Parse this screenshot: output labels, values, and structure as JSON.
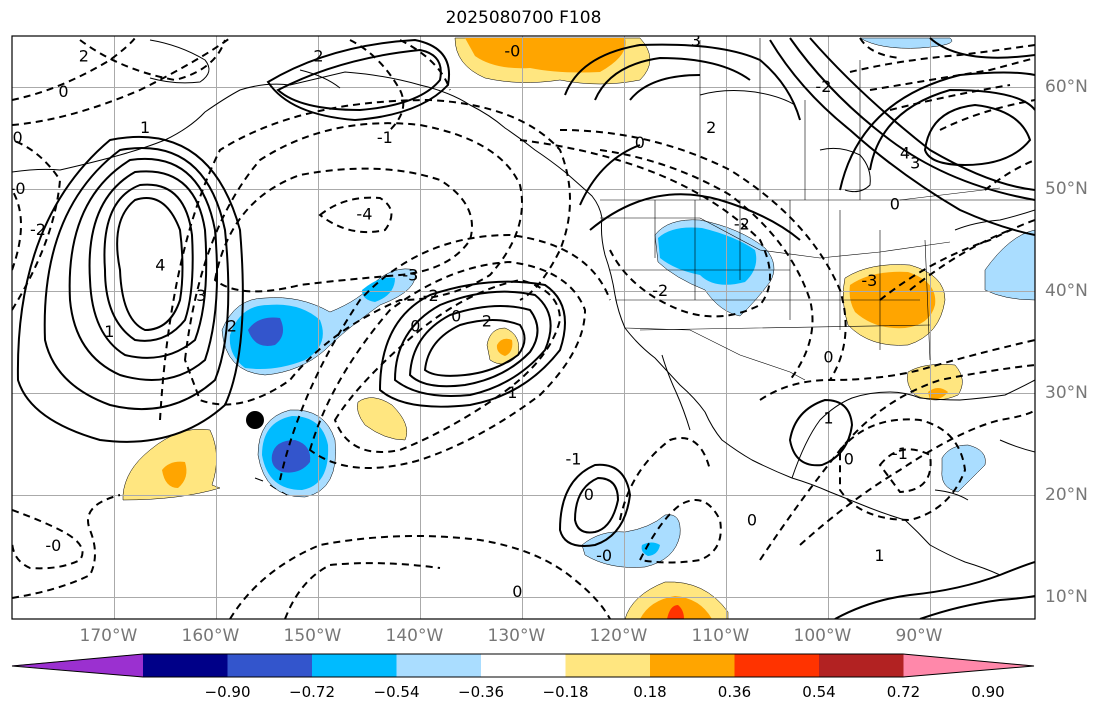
{
  "title": "2025080700 F108",
  "longitude_labels": [
    "170°W",
    "160°W",
    "150°W",
    "140°W",
    "130°W",
    "120°W",
    "110°W",
    "100°W",
    "90°W"
  ],
  "latitude_labels": [
    "60°N",
    "50°N",
    "40°N",
    "30°N",
    "20°N",
    "10°N"
  ],
  "colorbar": {
    "ticks": [
      "−0.90",
      "−0.72",
      "−0.54",
      "−0.36",
      "−0.18",
      "0.18",
      "0.36",
      "0.54",
      "0.72",
      "0.90"
    ],
    "colors": [
      "#9b30d0",
      "#000088",
      "#3355cc",
      "#00bbff",
      "#aaddff",
      "#ffffff",
      "#ffe680",
      "#ffa500",
      "#ff3300",
      "#b22222",
      "#ff88aa"
    ]
  },
  "contour_labels": [
    {
      "text": "4",
      "lon": -165.5,
      "lat": 42.5
    },
    {
      "text": "3",
      "lon": -161.5,
      "lat": 39.5
    },
    {
      "text": "2",
      "lon": -158.5,
      "lat": 36.5
    },
    {
      "text": "1",
      "lon": -170.5,
      "lat": 36.0
    },
    {
      "text": "-2",
      "lon": -177.5,
      "lat": 46.0
    },
    {
      "text": "-4",
      "lon": -145.5,
      "lat": 47.5
    },
    {
      "text": "-1",
      "lon": -143.5,
      "lat": 55.0
    },
    {
      "text": "-3",
      "lon": -141.0,
      "lat": 41.5
    },
    {
      "text": "-2",
      "lon": -139.0,
      "lat": 39.5
    },
    {
      "text": "0",
      "lon": -140.5,
      "lat": 36.5
    },
    {
      "text": "0",
      "lon": -136.5,
      "lat": 37.5
    },
    {
      "text": "2",
      "lon": -133.5,
      "lat": 37.0
    },
    {
      "text": "1",
      "lon": -131.0,
      "lat": 30.0
    },
    {
      "text": "2",
      "lon": -150.0,
      "lat": 63.0
    },
    {
      "text": "-0",
      "lon": -131.0,
      "lat": 63.5
    },
    {
      "text": "3",
      "lon": -113.0,
      "lat": 64.5
    },
    {
      "text": "2",
      "lon": -111.5,
      "lat": 56.0
    },
    {
      "text": "0",
      "lon": -118.5,
      "lat": 54.5
    },
    {
      "text": "-2",
      "lon": -108.5,
      "lat": 46.5
    },
    {
      "text": "-2",
      "lon": -116.5,
      "lat": 40.0
    },
    {
      "text": "4",
      "lon": -92.5,
      "lat": 53.5
    },
    {
      "text": "3",
      "lon": -91.5,
      "lat": 52.5
    },
    {
      "text": "0",
      "lon": -93.5,
      "lat": 48.5
    },
    {
      "text": "-2",
      "lon": -100.5,
      "lat": 60.0
    },
    {
      "text": "-3",
      "lon": -96.0,
      "lat": 41.0
    },
    {
      "text": "0",
      "lon": -100.0,
      "lat": 33.5
    },
    {
      "text": "1",
      "lon": -100.0,
      "lat": 27.5
    },
    {
      "text": "0",
      "lon": -98.0,
      "lat": 23.5
    },
    {
      "text": "-1",
      "lon": -93.0,
      "lat": 24.0
    },
    {
      "text": "0",
      "lon": -107.5,
      "lat": 17.5
    },
    {
      "text": "1",
      "lon": -95.0,
      "lat": 14.0
    },
    {
      "text": "0",
      "lon": -123.5,
      "lat": 20.0
    },
    {
      "text": "-1",
      "lon": -125.0,
      "lat": 23.5
    },
    {
      "text": "-0",
      "lon": -122.0,
      "lat": 14.0
    },
    {
      "text": "0",
      "lon": -130.5,
      "lat": 10.5
    },
    {
      "text": "-0",
      "lon": -176.0,
      "lat": 15.0
    },
    {
      "text": "-0",
      "lon": -179.5,
      "lat": 50.0
    },
    {
      "text": "0",
      "lon": -179.5,
      "lat": 55.0
    },
    {
      "text": "0",
      "lon": -175.0,
      "lat": 59.5
    },
    {
      "text": "2",
      "lon": -173.0,
      "lat": 63.0
    },
    {
      "text": "1",
      "lon": -167.0,
      "lat": 56.0
    }
  ]
}
